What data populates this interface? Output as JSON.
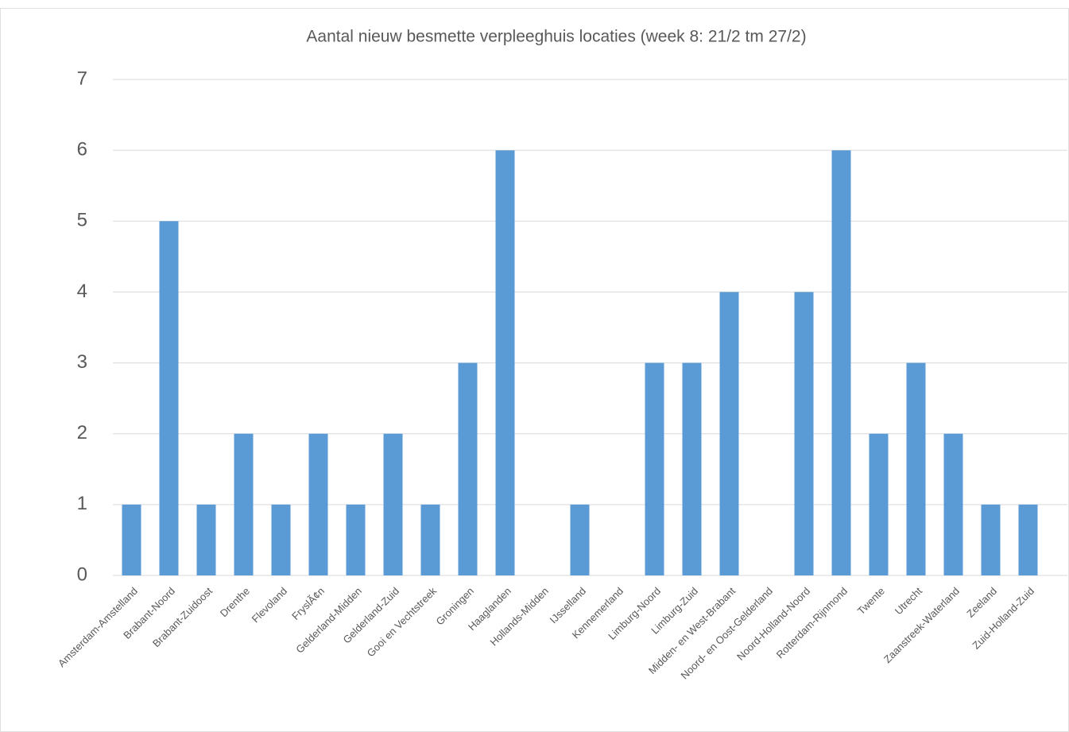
{
  "chart_data": {
    "type": "bar",
    "title": "Aantal nieuw besmette verpleeghuis locaties (week 8: 21/2 tm 27/2)",
    "categories": [
      "Amsterdam-Amstelland",
      "Brabant-Noord",
      "Brabant-Zuidoost",
      "Drenthe",
      "Flevoland",
      "FryslÃ¢n",
      "Gelderland-Midden",
      "Gelderland-Zuid",
      "Gooi en Vechtstreek",
      "Groningen",
      "Haaglanden",
      "Hollands-Midden",
      "IJsselland",
      "Kennemerland",
      "Limburg-Noord",
      "Limburg-Zuid",
      "Midden- en West-Brabant",
      "Noord- en Oost-Gelderland",
      "Noord-Holland-Noord",
      "Rotterdam-Rijnmond",
      "Twente",
      "Utrecht",
      "Zaanstreek-Waterland",
      "Zeeland",
      "Zuid-Holland-Zuid"
    ],
    "values": [
      1,
      5,
      1,
      2,
      1,
      2,
      1,
      2,
      1,
      3,
      6,
      0,
      1,
      0,
      3,
      3,
      4,
      0,
      4,
      6,
      2,
      3,
      2,
      1,
      1
    ],
    "color": "#5b9bd5",
    "ylim": [
      0,
      7
    ],
    "yticks": [
      0,
      1,
      2,
      3,
      4,
      5,
      6,
      7
    ],
    "grid": true
  }
}
